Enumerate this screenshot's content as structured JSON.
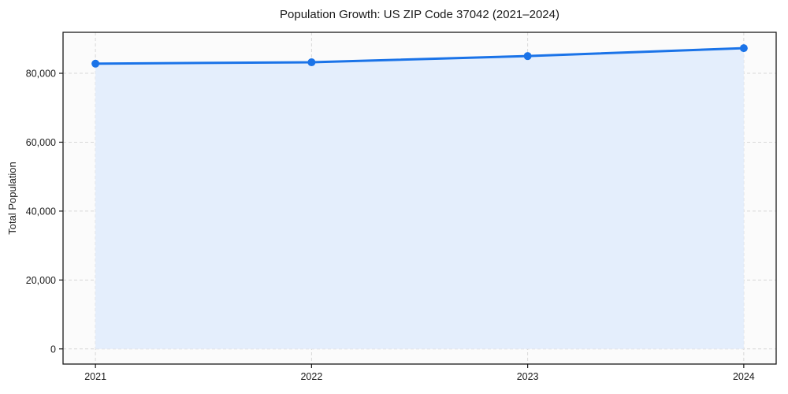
{
  "figure": {
    "title": "Population Growth: US ZIP Code 37042 (2021–2024)",
    "ylabel": "Total Population"
  },
  "chart_data": {
    "type": "area",
    "title": "Population Growth: US ZIP Code 37042 (2021–2024)",
    "xlabel": "",
    "ylabel": "Total Population",
    "x": [
      2021,
      2022,
      2023,
      2024
    ],
    "series": [
      {
        "name": "Total Population",
        "values": [
          82800,
          83200,
          85000,
          87300
        ]
      }
    ],
    "xticks": [
      2021,
      2022,
      2023,
      2024
    ],
    "xtick_labels": [
      "2021",
      "2022",
      "2023",
      "2024"
    ],
    "yticks": [
      0,
      20000,
      40000,
      60000,
      80000
    ],
    "ytick_labels": [
      "0",
      "20,000",
      "40,000",
      "60,000",
      "80,000"
    ],
    "xlim": [
      2020.85,
      2024.15
    ],
    "ylim": [
      -4400,
      91900
    ],
    "grid": true,
    "grid_style": "dashed",
    "legend": false,
    "fill_to_zero": true,
    "marker": "circle",
    "line_width": 3,
    "marker_radius": 5,
    "colors": {
      "line": "#1a73e8",
      "marker": "#1a73e8",
      "fill": "#e4eefc",
      "grid": "#d8d8d8",
      "spine": "#1a1a1a",
      "text": "#1a1a1a",
      "plot_background": "#fbfbfb",
      "figure_background": "#ffffff"
    }
  }
}
